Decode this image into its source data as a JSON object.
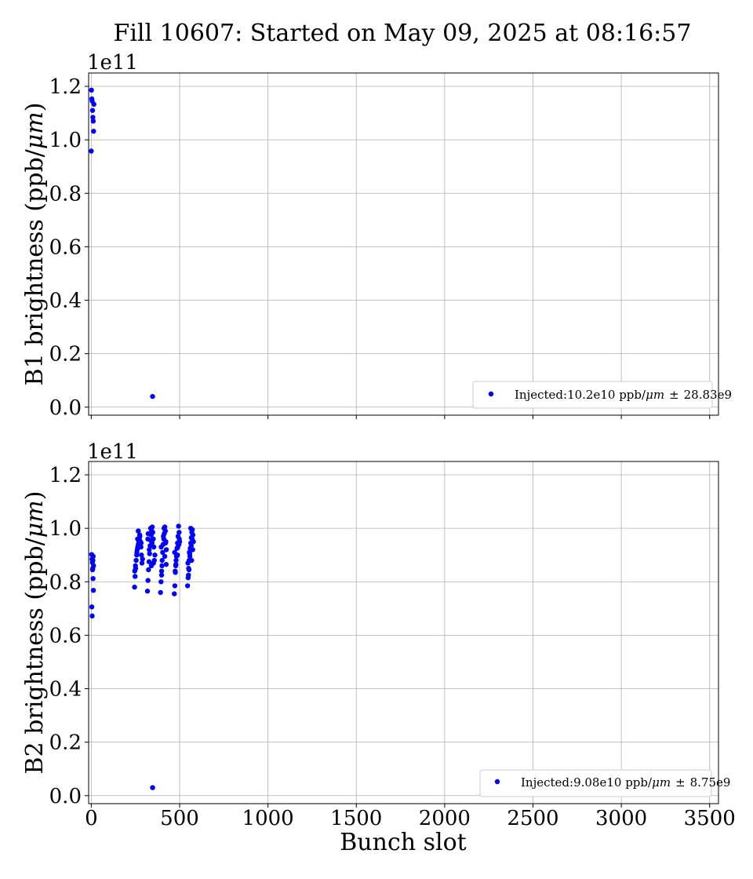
{
  "title": "Fill 10607: Started on May 09, 2025 at 08:16:57",
  "xlabel": "Bunch slot",
  "chart_data": [
    {
      "type": "scatter",
      "ylabel": "B1 brightness (ppb/",
      "ylabel_unit": "μm",
      "ylabel_close": ")",
      "offset_text": "1e11",
      "xlim": [
        -15,
        3550
      ],
      "ylim": [
        -3000000000.0,
        125000000000.0
      ],
      "xticks": [
        0,
        500,
        1000,
        1500,
        2000,
        2500,
        3000,
        3500
      ],
      "yticks": [
        0.0,
        0.2,
        0.4,
        0.6,
        0.8,
        1.0,
        1.2
      ],
      "ytick_labels": [
        "0.0",
        "0.2",
        "0.4",
        "0.6",
        "0.8",
        "1.0",
        "1.2"
      ],
      "xtick_labels_shown": false,
      "grid": true,
      "legend_position": "lower-right",
      "color": "#0000ff",
      "legend": {
        "prefix": "Injected:10.2e10 ppb/",
        "unit": "μm",
        "pm": "±",
        "suffix": "28.83e9"
      },
      "series": [
        {
          "x": [
            1,
            3,
            5,
            7,
            9,
            11,
            13,
            15,
            0,
            347
          ],
          "y": [
            118600000000.0,
            115300000000.0,
            114500000000.0,
            111000000000.0,
            108400000000.0,
            107000000000.0,
            103200000000.0,
            113300000000.0,
            95800000000.0,
            4000000000.0
          ]
        }
      ]
    },
    {
      "type": "scatter",
      "ylabel": "B2 brightness (ppb/",
      "ylabel_unit": "μm",
      "ylabel_close": ")",
      "offset_text": "1e11",
      "xlim": [
        -15,
        3550
      ],
      "ylim": [
        -3000000000.0,
        125000000000.0
      ],
      "xticks": [
        0,
        500,
        1000,
        1500,
        2000,
        2500,
        3000,
        3500
      ],
      "xtick_labels": [
        "0",
        "500",
        "1000",
        "1500",
        "2000",
        "2500",
        "3000",
        "3500"
      ],
      "yticks": [
        0.0,
        0.2,
        0.4,
        0.6,
        0.8,
        1.0,
        1.2
      ],
      "ytick_labels": [
        "0.0",
        "0.2",
        "0.4",
        "0.6",
        "0.8",
        "1.0",
        "1.2"
      ],
      "grid": true,
      "legend_position": "lower-right",
      "color": "#0000ff",
      "legend": {
        "prefix": "Injected:9.08e10 ppb/",
        "unit": "μm",
        "pm": "±",
        "suffix": "8.75e9"
      },
      "series": [
        {
          "x": [
            2,
            4,
            6,
            8,
            10,
            12,
            3,
            5,
            7,
            9,
            11,
            13,
            347,
            245,
            248,
            251,
            254,
            257,
            260,
            263,
            266,
            269,
            272,
            275,
            278,
            281,
            284,
            287,
            250,
            258,
            266,
            274,
            282,
            290,
            246,
            262,
            318,
            321,
            324,
            327,
            330,
            333,
            336,
            339,
            342,
            345,
            348,
            351,
            354,
            357,
            320,
            328,
            336,
            344,
            352,
            360,
            322,
            340,
            392,
            395,
            398,
            401,
            404,
            407,
            410,
            413,
            416,
            419,
            422,
            425,
            400,
            408,
            416,
            424,
            396,
            412,
            420,
            398,
            470,
            473,
            476,
            479,
            482,
            485,
            488,
            491,
            494,
            497,
            500,
            472,
            480,
            488,
            496,
            478,
            490,
            475,
            498,
            545,
            548,
            551,
            554,
            557,
            560,
            563,
            566,
            569,
            572,
            575,
            578,
            550,
            558,
            566,
            574,
            547,
            555,
            563,
            571,
            553,
            568
          ],
          "y": [
            90200000000.0,
            88500000000.0,
            87200000000.0,
            85000000000.0,
            81200000000.0,
            76800000000.0,
            70600000000.0,
            67200000000.0,
            84500000000.0,
            88000000000.0,
            89500000000.0,
            86000000000.0,
            3000000000.0,
            78000000000.0,
            82000000000.0,
            85000000000.0,
            88000000000.0,
            90000000000.0,
            92000000000.0,
            93000000000.0,
            94000000000.0,
            95000000000.0,
            96000000000.0,
            97000000000.0,
            95000000000.0,
            93000000000.0,
            90000000000.0,
            87000000000.0,
            86000000000.0,
            91000000000.0,
            99000000000.0,
            97500000000.0,
            94500000000.0,
            88500000000.0,
            84000000000.0,
            96000000000.0,
            76500000000.0,
            80500000000.0,
            84500000000.0,
            87500000000.0,
            90500000000.0,
            93500000000.0,
            95500000000.0,
            97500000000.0,
            99000000000.0,
            100500000000.0,
            98500000000.0,
            96000000000.0,
            93000000000.0,
            88000000000.0,
            96000000000.0,
            92000000000.0,
            100000000000.0,
            94500000000.0,
            87000000000.0,
            90000000000.0,
            98000000000.0,
            86000000000.0,
            76000000000.0,
            80000000000.0,
            84000000000.0,
            88000000000.0,
            91000000000.0,
            94000000000.0,
            96000000000.0,
            98000000000.0,
            100500000000.0,
            99000000000.0,
            95000000000.0,
            92000000000.0,
            86000000000.0,
            97000000000.0,
            89500000000.0,
            86500000000.0,
            93000000000.0,
            100000000000.0,
            94500000000.0,
            82500000000.0,
            75500000000.0,
            78500000000.0,
            83500000000.0,
            86500000000.0,
            89500000000.0,
            92500000000.0,
            94500000000.0,
            97000000000.0,
            100800000000.0,
            98500000000.0,
            95000000000.0,
            91000000000.0,
            88000000000.0,
            90000000000.0,
            94000000000.0,
            86000000000.0,
            93000000000.0,
            84000000000.0,
            96000000000.0,
            78500000000.0,
            81500000000.0,
            85000000000.0,
            88000000000.0,
            90500000000.0,
            92500000000.0,
            94500000000.0,
            96500000000.0,
            98500000000.0,
            99500000000.0,
            97500000000.0,
            95000000000.0,
            82500000000.0,
            89500000000.0,
            93500000000.0,
            92000000000.0,
            87000000000.0,
            91000000000.0,
            100000000000.0,
            96000000000.0,
            84500000000.0,
            88000000000.0
          ]
        }
      ]
    }
  ]
}
